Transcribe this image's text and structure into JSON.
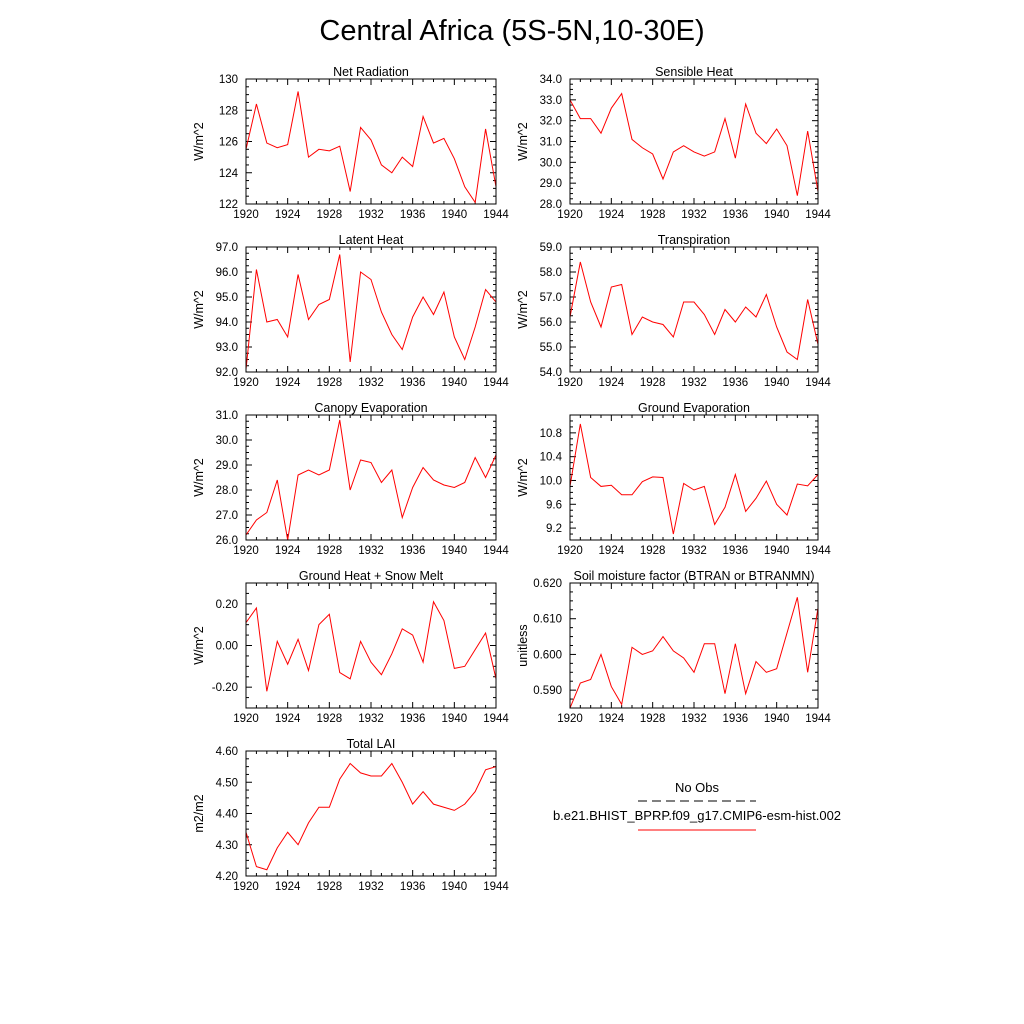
{
  "title": "Central Africa (5S-5N,10-30E)",
  "legend": {
    "obs_label": "No Obs",
    "model_label": "b.e21.BHIST_BPRP.f09_g17.CMIP6-esm-hist.002",
    "obs_color": "#000000",
    "model_color": "#ff0000"
  },
  "colors": {
    "series": "#ff0000",
    "axis": "#000000"
  },
  "chart_data": [
    {
      "type": "line",
      "title": "Net Radiation",
      "ylabel": "W/m^2",
      "xlim": [
        1920,
        1944
      ],
      "ylim": [
        122,
        130
      ],
      "xticks": [
        1920,
        1924,
        1928,
        1932,
        1936,
        1940,
        1944
      ],
      "yticks": [
        122,
        124,
        126,
        128,
        130
      ],
      "yfmt": 0,
      "x": [
        1920,
        1921,
        1922,
        1923,
        1924,
        1925,
        1926,
        1927,
        1928,
        1929,
        1930,
        1931,
        1932,
        1933,
        1934,
        1935,
        1936,
        1937,
        1938,
        1939,
        1940,
        1941,
        1942,
        1943,
        1944
      ],
      "y": [
        125.5,
        128.4,
        125.9,
        125.6,
        125.8,
        129.2,
        125.0,
        125.5,
        125.4,
        125.7,
        122.8,
        126.9,
        126.1,
        124.5,
        124.0,
        125.0,
        124.4,
        127.6,
        125.9,
        126.2,
        124.9,
        123.1,
        122.1,
        126.8,
        123.1
      ]
    },
    {
      "type": "line",
      "title": "Sensible Heat",
      "ylabel": "W/m^2",
      "xlim": [
        1920,
        1944
      ],
      "ylim": [
        28.0,
        34.0
      ],
      "xticks": [
        1920,
        1924,
        1928,
        1932,
        1936,
        1940,
        1944
      ],
      "yticks": [
        28.0,
        29.0,
        30.0,
        31.0,
        32.0,
        33.0,
        34.0
      ],
      "yfmt": 1,
      "x": [
        1920,
        1921,
        1922,
        1923,
        1924,
        1925,
        1926,
        1927,
        1928,
        1929,
        1930,
        1931,
        1932,
        1933,
        1934,
        1935,
        1936,
        1937,
        1938,
        1939,
        1940,
        1941,
        1942,
        1943,
        1944
      ],
      "y": [
        33.0,
        32.1,
        32.1,
        31.4,
        32.6,
        33.3,
        31.1,
        30.7,
        30.4,
        29.2,
        30.5,
        30.8,
        30.5,
        30.3,
        30.5,
        32.1,
        30.2,
        32.8,
        31.4,
        30.9,
        31.6,
        30.8,
        28.4,
        31.5,
        28.6
      ]
    },
    {
      "type": "line",
      "title": "Latent Heat",
      "ylabel": "W/m^2",
      "xlim": [
        1920,
        1944
      ],
      "ylim": [
        92.0,
        97.0
      ],
      "xticks": [
        1920,
        1924,
        1928,
        1932,
        1936,
        1940,
        1944
      ],
      "yticks": [
        92.0,
        93.0,
        94.0,
        95.0,
        96.0,
        97.0
      ],
      "yfmt": 1,
      "x": [
        1920,
        1921,
        1922,
        1923,
        1924,
        1925,
        1926,
        1927,
        1928,
        1929,
        1930,
        1931,
        1932,
        1933,
        1934,
        1935,
        1936,
        1937,
        1938,
        1939,
        1940,
        1941,
        1942,
        1943,
        1944
      ],
      "y": [
        92.1,
        96.1,
        94.0,
        94.1,
        93.4,
        95.9,
        94.1,
        94.7,
        94.9,
        96.7,
        92.4,
        96.0,
        95.7,
        94.4,
        93.5,
        92.9,
        94.2,
        95.0,
        94.3,
        95.2,
        93.4,
        92.5,
        93.8,
        95.3,
        94.8
      ]
    },
    {
      "type": "line",
      "title": "Transpiration",
      "ylabel": "W/m^2",
      "xlim": [
        1920,
        1944
      ],
      "ylim": [
        54.0,
        59.0
      ],
      "xticks": [
        1920,
        1924,
        1928,
        1932,
        1936,
        1940,
        1944
      ],
      "yticks": [
        54.0,
        55.0,
        56.0,
        57.0,
        58.0,
        59.0
      ],
      "yfmt": 1,
      "x": [
        1920,
        1921,
        1922,
        1923,
        1924,
        1925,
        1926,
        1927,
        1928,
        1929,
        1930,
        1931,
        1932,
        1933,
        1934,
        1935,
        1936,
        1937,
        1938,
        1939,
        1940,
        1941,
        1942,
        1943,
        1944
      ],
      "y": [
        56.2,
        58.4,
        56.8,
        55.8,
        57.4,
        57.5,
        55.5,
        56.2,
        56.0,
        55.9,
        55.4,
        56.8,
        56.8,
        56.3,
        55.5,
        56.5,
        56.0,
        56.6,
        56.2,
        57.1,
        55.8,
        54.8,
        54.5,
        56.9,
        55.1
      ]
    },
    {
      "type": "line",
      "title": "Canopy Evaporation",
      "ylabel": "W/m^2",
      "xlim": [
        1920,
        1944
      ],
      "ylim": [
        26.0,
        31.0
      ],
      "xticks": [
        1920,
        1924,
        1928,
        1932,
        1936,
        1940,
        1944
      ],
      "yticks": [
        26.0,
        27.0,
        28.0,
        29.0,
        30.0,
        31.0
      ],
      "yfmt": 1,
      "x": [
        1920,
        1921,
        1922,
        1923,
        1924,
        1925,
        1926,
        1927,
        1928,
        1929,
        1930,
        1931,
        1932,
        1933,
        1934,
        1935,
        1936,
        1937,
        1938,
        1939,
        1940,
        1941,
        1942,
        1943,
        1944
      ],
      "y": [
        26.2,
        26.8,
        27.1,
        28.4,
        26.0,
        28.6,
        28.8,
        28.6,
        28.8,
        30.8,
        28.0,
        29.2,
        29.1,
        28.3,
        28.8,
        26.9,
        28.1,
        28.9,
        28.4,
        28.2,
        28.1,
        28.3,
        29.3,
        28.5,
        29.4
      ]
    },
    {
      "type": "line",
      "title": "Ground Evaporation",
      "ylabel": "W/m^2",
      "xlim": [
        1920,
        1944
      ],
      "ylim": [
        9.0,
        11.1
      ],
      "xticks": [
        1920,
        1924,
        1928,
        1932,
        1936,
        1940,
        1944
      ],
      "yticks": [
        9.2,
        9.6,
        10.0,
        10.4,
        10.8
      ],
      "yfmt": 1,
      "x": [
        1920,
        1921,
        1922,
        1923,
        1924,
        1925,
        1926,
        1927,
        1928,
        1929,
        1930,
        1931,
        1932,
        1933,
        1934,
        1935,
        1936,
        1937,
        1938,
        1939,
        1940,
        1941,
        1942,
        1943,
        1944
      ],
      "y": [
        9.9,
        10.95,
        10.05,
        9.9,
        9.92,
        9.76,
        9.76,
        9.98,
        10.06,
        10.05,
        9.1,
        9.95,
        9.84,
        9.9,
        9.26,
        9.55,
        10.1,
        9.48,
        9.7,
        9.99,
        9.6,
        9.42,
        9.94,
        9.91,
        10.1
      ]
    },
    {
      "type": "line",
      "title": "Ground Heat + Snow Melt",
      "ylabel": "W/m^2",
      "xlim": [
        1920,
        1944
      ],
      "ylim": [
        -0.3,
        0.3
      ],
      "xticks": [
        1920,
        1924,
        1928,
        1932,
        1936,
        1940,
        1944
      ],
      "yticks": [
        -0.2,
        0.0,
        0.2
      ],
      "yfmt": 2,
      "x": [
        1920,
        1921,
        1922,
        1923,
        1924,
        1925,
        1926,
        1927,
        1928,
        1929,
        1930,
        1931,
        1932,
        1933,
        1934,
        1935,
        1936,
        1937,
        1938,
        1939,
        1940,
        1941,
        1942,
        1943,
        1944
      ],
      "y": [
        0.11,
        0.18,
        -0.22,
        0.02,
        -0.09,
        0.03,
        -0.12,
        0.1,
        0.15,
        -0.13,
        -0.16,
        0.02,
        -0.08,
        -0.14,
        -0.04,
        0.08,
        0.05,
        -0.08,
        0.21,
        0.12,
        -0.11,
        -0.1,
        -0.02,
        0.06,
        -0.16
      ]
    },
    {
      "type": "line",
      "title": "Soil moisture factor (BTRAN or BTRANMN)",
      "ylabel": "unitless",
      "xlim": [
        1920,
        1944
      ],
      "ylim": [
        0.585,
        0.62
      ],
      "xticks": [
        1920,
        1924,
        1928,
        1932,
        1936,
        1940,
        1944
      ],
      "yticks": [
        0.59,
        0.6,
        0.61,
        0.62
      ],
      "yfmt": 3,
      "x": [
        1920,
        1921,
        1922,
        1923,
        1924,
        1925,
        1926,
        1927,
        1928,
        1929,
        1930,
        1931,
        1932,
        1933,
        1934,
        1935,
        1936,
        1937,
        1938,
        1939,
        1940,
        1941,
        1942,
        1943,
        1944
      ],
      "y": [
        0.585,
        0.592,
        0.593,
        0.6,
        0.591,
        0.586,
        0.602,
        0.6,
        0.601,
        0.605,
        0.601,
        0.599,
        0.595,
        0.603,
        0.603,
        0.589,
        0.603,
        0.589,
        0.598,
        0.595,
        0.596,
        0.606,
        0.616,
        0.595,
        0.613
      ]
    },
    {
      "type": "line",
      "title": "Total LAI",
      "ylabel": "m2/m2",
      "xlim": [
        1920,
        1944
      ],
      "ylim": [
        4.2,
        4.6
      ],
      "xticks": [
        1920,
        1924,
        1928,
        1932,
        1936,
        1940,
        1944
      ],
      "yticks": [
        4.2,
        4.3,
        4.4,
        4.5,
        4.6
      ],
      "yfmt": 2,
      "x": [
        1920,
        1921,
        1922,
        1923,
        1924,
        1925,
        1926,
        1927,
        1928,
        1929,
        1930,
        1931,
        1932,
        1933,
        1934,
        1935,
        1936,
        1937,
        1938,
        1939,
        1940,
        1941,
        1942,
        1943,
        1944
      ],
      "y": [
        4.34,
        4.23,
        4.22,
        4.29,
        4.34,
        4.3,
        4.37,
        4.42,
        4.42,
        4.51,
        4.56,
        4.53,
        4.52,
        4.52,
        4.56,
        4.5,
        4.43,
        4.47,
        4.43,
        4.42,
        4.41,
        4.43,
        4.47,
        4.54,
        4.55
      ]
    }
  ]
}
